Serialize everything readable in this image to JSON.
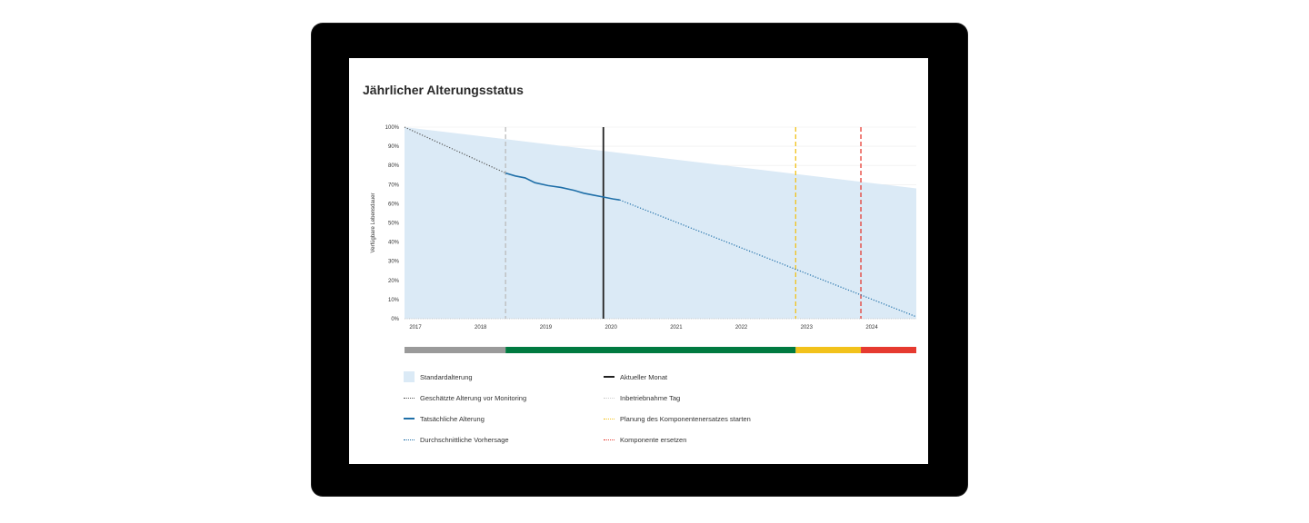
{
  "chart_data": {
    "type": "line",
    "title": "Jährlicher Alterungsstatus",
    "ylabel": "Verfügbare Lebensdauer",
    "xlabel": "",
    "xlim": [
      2017.0,
      2024.85
    ],
    "ylim": [
      0,
      100
    ],
    "x_ticks": [
      "2017",
      "2018",
      "2019",
      "2020",
      "2021",
      "2022",
      "2023",
      "2024"
    ],
    "y_ticks": [
      "0%",
      "10%",
      "20%",
      "30%",
      "40%",
      "50%",
      "60%",
      "70%",
      "80%",
      "90%",
      "100%"
    ],
    "grid": true,
    "series": [
      {
        "name": "Standardalterung",
        "style": "area",
        "color": "#dbeaf6",
        "points": [
          [
            2017.0,
            100
          ],
          [
            2024.85,
            68
          ]
        ]
      },
      {
        "name": "Geschätzte Alterung vor Monitoring",
        "style": "dotted",
        "color": "#555555",
        "points": [
          [
            2017.0,
            100
          ],
          [
            2018.55,
            76
          ]
        ]
      },
      {
        "name": "Tatsächliche Alterung",
        "style": "solid",
        "color": "#1f6fa8",
        "points": [
          [
            2018.55,
            76
          ],
          [
            2018.7,
            74.5
          ],
          [
            2018.85,
            73.5
          ],
          [
            2019.0,
            71
          ],
          [
            2019.2,
            69.5
          ],
          [
            2019.4,
            68.5
          ],
          [
            2019.6,
            67
          ],
          [
            2019.75,
            65.5
          ],
          [
            2019.9,
            64.5
          ],
          [
            2020.05,
            63.5
          ],
          [
            2020.2,
            62.5
          ],
          [
            2020.3,
            62
          ]
        ]
      },
      {
        "name": "Durchschnittliche Vorhersage",
        "style": "dotted",
        "color": "#1f6fa8",
        "points": [
          [
            2020.3,
            62
          ],
          [
            2024.85,
            1
          ]
        ]
      }
    ],
    "vertical_markers": [
      {
        "name": "Inbetriebnahme Tag",
        "x": 2018.55,
        "color": "#bbbbbb",
        "style": "dashed"
      },
      {
        "name": "Aktueller Monat",
        "x": 2020.05,
        "color": "#222222",
        "style": "solid"
      },
      {
        "name": "Planung des Komponentenersatzes starten",
        "x": 2023.0,
        "color": "#f2c21b",
        "style": "dashed"
      },
      {
        "name": "Komponente ersetzen",
        "x": 2024.0,
        "color": "#e63a30",
        "style": "dashed"
      }
    ],
    "status_bar": [
      {
        "from": 2017.0,
        "to": 2018.55,
        "color": "#9a9a9a"
      },
      {
        "from": 2018.55,
        "to": 2023.0,
        "color": "#007a40"
      },
      {
        "from": 2023.0,
        "to": 2024.0,
        "color": "#f2c21b"
      },
      {
        "from": 2024.0,
        "to": 2024.85,
        "color": "#e63a30"
      }
    ],
    "legend_placement": "bottom"
  },
  "legend": [
    {
      "label": "Standardalterung",
      "kind": "area",
      "color": "#dbeaf6"
    },
    {
      "label": "Geschätzte Alterung vor Monitoring",
      "kind": "dotted",
      "color": "#555555"
    },
    {
      "label": "Tatsächliche Alterung",
      "kind": "solid",
      "color": "#1f6fa8"
    },
    {
      "label": "Durchschnittliche Vorhersage",
      "kind": "dotted",
      "color": "#1f6fa8"
    },
    {
      "label": "Aktueller Monat",
      "kind": "solid",
      "color": "#222222"
    },
    {
      "label": "Inbetriebnahme Tag",
      "kind": "dotted",
      "color": "#cccccc"
    },
    {
      "label": "Planung des Komponentenersatzes starten",
      "kind": "dotted",
      "color": "#f2c21b"
    },
    {
      "label": "Komponente ersetzen",
      "kind": "dotted",
      "color": "#e63a30"
    }
  ]
}
